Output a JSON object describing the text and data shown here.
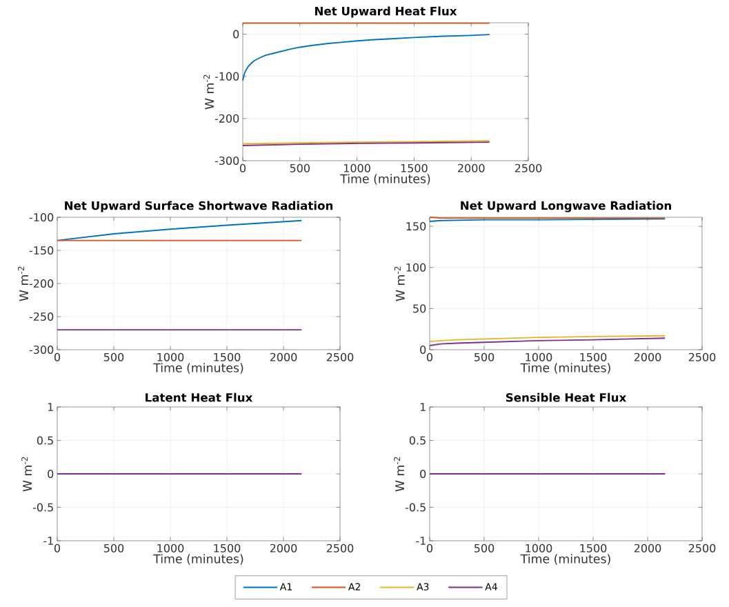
{
  "chart_data": [
    {
      "type": "line",
      "title": "Net Upward Heat Flux",
      "xlabel": "Time (minutes)",
      "ylabel": "W m$^{-2}$",
      "xlim": [
        0,
        2500
      ],
      "xticks": [
        0,
        500,
        1000,
        1500,
        2000,
        2500
      ],
      "ylim": [
        -300,
        27
      ],
      "yticks": [
        -300,
        -200,
        -100,
        0
      ],
      "grid": true,
      "series": [
        {
          "color": "#0072bd",
          "x": [
            0,
            10,
            20,
            35,
            50,
            75,
            100,
            150,
            200,
            275,
            350,
            425,
            500,
            600,
            750,
            875,
            1000,
            1150,
            1300,
            1500,
            1750,
            2000,
            2160
          ],
          "values": [
            -110,
            -98,
            -90,
            -82,
            -76,
            -69,
            -63,
            -56,
            -50,
            -45,
            -40,
            -35,
            -31,
            -27,
            -22,
            -19,
            -16,
            -13,
            -11,
            -8,
            -5,
            -3,
            -1
          ]
        },
        {
          "color": "#d95319",
          "x": [
            0,
            2160
          ],
          "values": [
            26,
            26
          ]
        },
        {
          "color": "#edb120",
          "x": [
            0,
            500,
            1000,
            1500,
            2160
          ],
          "values": [
            -260,
            -258,
            -256,
            -255,
            -253
          ]
        },
        {
          "color": "#7e2f8e",
          "x": [
            0,
            500,
            1000,
            1500,
            2160
          ],
          "values": [
            -264,
            -261,
            -259,
            -258,
            -256
          ]
        }
      ]
    },
    {
      "type": "line",
      "title": "Net Upward Surface Shortwave Radiation",
      "xlabel": "Time (minutes)",
      "ylabel": "W m$^{-2}$",
      "xlim": [
        0,
        2500
      ],
      "xticks": [
        0,
        500,
        1000,
        1500,
        2000,
        2500
      ],
      "ylim": [
        -300,
        -100
      ],
      "yticks": [
        -300,
        -250,
        -200,
        -150,
        -100
      ],
      "grid": true,
      "series": [
        {
          "color": "#0072bd",
          "x": [
            0,
            500,
            1000,
            1500,
            2160
          ],
          "values": [
            -135,
            -125,
            -118,
            -112,
            -105
          ]
        },
        {
          "color": "#d95319",
          "x": [
            0,
            2160
          ],
          "values": [
            -135,
            -135
          ]
        },
        {
          "color": "#edb120",
          "values": [
            null
          ]
        },
        {
          "color": "#7e2f8e",
          "x": [
            0,
            2160
          ],
          "values": [
            -270,
            -270
          ]
        }
      ]
    },
    {
      "type": "line",
      "title": "Net Upward Longwave Radiation",
      "xlabel": "Time (minutes)",
      "ylabel": "W m$^{-2}$",
      "xlim": [
        0,
        2500
      ],
      "xticks": [
        0,
        500,
        1000,
        1500,
        2000,
        2500
      ],
      "ylim": [
        0,
        161
      ],
      "yticks": [
        0,
        50,
        100,
        150
      ],
      "grid": true,
      "series": [
        {
          "color": "#0072bd",
          "x": [
            0,
            100,
            500,
            1000,
            2160
          ],
          "values": [
            156,
            157,
            158,
            158,
            159
          ]
        },
        {
          "color": "#d95319",
          "x": [
            0,
            100,
            2160
          ],
          "values": [
            161,
            160,
            160
          ]
        },
        {
          "color": "#edb120",
          "x": [
            0,
            100,
            250,
            500,
            1000,
            1500,
            2160
          ],
          "values": [
            10,
            11,
            12,
            13,
            15,
            16,
            17
          ]
        },
        {
          "color": "#7e2f8e",
          "x": [
            0,
            100,
            250,
            500,
            1000,
            1500,
            2160
          ],
          "values": [
            5,
            7,
            8,
            9,
            11,
            12,
            14
          ]
        }
      ]
    },
    {
      "type": "line",
      "title": "Latent Heat Flux",
      "xlabel": "Time (minutes)",
      "ylabel": "W m$^{-2}$",
      "xlim": [
        0,
        2500
      ],
      "xticks": [
        0,
        500,
        1000,
        1500,
        2000,
        2500
      ],
      "ylim": [
        -1,
        1
      ],
      "yticks": [
        -1,
        -0.5,
        0,
        0.5,
        1
      ],
      "grid": true,
      "series": [
        {
          "color": "#0072bd",
          "values": [
            null
          ]
        },
        {
          "color": "#d95319",
          "values": [
            null
          ]
        },
        {
          "color": "#edb120",
          "values": [
            null
          ]
        },
        {
          "color": "#7e2f8e",
          "x": [
            0,
            2160
          ],
          "values": [
            0,
            0
          ]
        }
      ]
    },
    {
      "type": "line",
      "title": "Sensible Heat Flux",
      "xlabel": "Time (minutes)",
      "ylabel": "W m$^{-2}$",
      "xlim": [
        0,
        2500
      ],
      "xticks": [
        0,
        500,
        1000,
        1500,
        2000,
        2500
      ],
      "ylim": [
        -1,
        1
      ],
      "yticks": [
        -1,
        -0.5,
        0,
        0.5,
        1
      ],
      "grid": true,
      "legend": "bottom",
      "series": [
        {
          "name": "A1",
          "color": "#0072bd",
          "values": [
            null
          ]
        },
        {
          "name": "A2",
          "color": "#d95319",
          "values": [
            null
          ]
        },
        {
          "name": "A3",
          "color": "#edb120",
          "values": [
            null
          ]
        },
        {
          "name": "A4",
          "color": "#7e2f8e",
          "x": [
            0,
            2160
          ],
          "values": [
            0,
            0
          ]
        }
      ]
    }
  ]
}
